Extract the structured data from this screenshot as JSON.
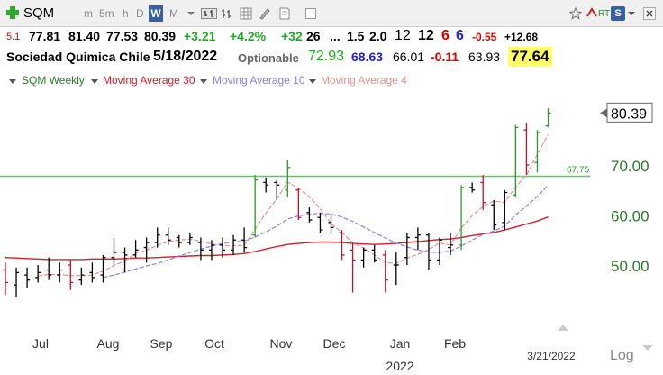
{
  "toolbar": {
    "symbol": "SQM",
    "periods": [
      "m",
      "5m",
      "h",
      "D",
      "W",
      "M"
    ],
    "active_period": "W",
    "rt_label": "RT",
    "s_label": "S"
  },
  "quote": {
    "row1": {
      "prefix": "5.1",
      "last": "77.81",
      "high": "81.40",
      "low": "77.53",
      "close": "80.39",
      "change": "+3.21",
      "change_pct": "+4.2%",
      "v1": "+32",
      "v2": "26",
      "dots": "...",
      "v3": "1.5",
      "v4": "2.0",
      "v5": "12",
      "v6": "12",
      "v7": "6",
      "v8": "6",
      "v9": "-0.55",
      "v10": "+12.68"
    },
    "row2": {
      "company": "Sociedad Quimica Chile",
      "date": "5/18/2022",
      "optionable": "Optionable",
      "a": "72.93",
      "b": "68.63",
      "c": "66.01",
      "d": "-0.11",
      "e": "63.93",
      "f": "77.64"
    }
  },
  "legend": {
    "title": "SQM Weekly",
    "ma30": "Moving Average 30",
    "ma10": "Moving Average 10",
    "ma4": "Moving Average 4"
  },
  "colors": {
    "up_bar": "#2a9a2a",
    "down_bar": "#c0132a",
    "neutral_bar": "#000000",
    "ma30": "#d0202a",
    "ma10": "#8a7ee0",
    "ma4": "#e89090",
    "hline": "#44dd44",
    "axis_text": "#2c7a2c",
    "highlight_bg": "#ffff66",
    "green_text": "#22aa22",
    "red_text": "#dd0000",
    "blue_text": "#2222cc"
  },
  "chart_data": {
    "type": "ohlc",
    "title": "SQM Weekly",
    "yticks": [
      50,
      60,
      70
    ],
    "ytick_labels": [
      "50.00",
      "60.00",
      "70.00"
    ],
    "ylim": [
      42,
      84
    ],
    "last_price_label": "80.39",
    "hline": {
      "value": 67.75,
      "label": "67.75"
    },
    "x_labels": [
      "Jul",
      "Aug",
      "Sep",
      "Oct",
      "Nov",
      "Dec",
      "Jan",
      "Feb"
    ],
    "year_label": "2022",
    "date_label": "3/21/2022",
    "log_label": "Log",
    "bars": [
      {
        "o": 49.0,
        "h": 50.5,
        "l": 44.0,
        "c": 46.5,
        "d": "down"
      },
      {
        "o": 46.0,
        "h": 49.5,
        "l": 43.5,
        "c": 48.5,
        "d": "neutral"
      },
      {
        "o": 48.0,
        "h": 49.5,
        "l": 45.5,
        "c": 47.0,
        "d": "neutral"
      },
      {
        "o": 47.5,
        "h": 50.0,
        "l": 46.5,
        "c": 48.5,
        "d": "neutral"
      },
      {
        "o": 49.0,
        "h": 51.5,
        "l": 47.0,
        "c": 48.0,
        "d": "neutral"
      },
      {
        "o": 48.0,
        "h": 50.5,
        "l": 46.5,
        "c": 49.0,
        "d": "neutral"
      },
      {
        "o": 50.0,
        "h": 51.0,
        "l": 45.0,
        "c": 46.5,
        "d": "down"
      },
      {
        "o": 47.0,
        "h": 49.5,
        "l": 46.0,
        "c": 48.0,
        "d": "neutral"
      },
      {
        "o": 48.5,
        "h": 50.5,
        "l": 46.5,
        "c": 47.5,
        "d": "neutral"
      },
      {
        "o": 48.0,
        "h": 52.0,
        "l": 46.5,
        "c": 51.5,
        "d": "neutral"
      },
      {
        "o": 51.5,
        "h": 55.5,
        "l": 50.0,
        "c": 52.5,
        "d": "neutral"
      },
      {
        "o": 52.5,
        "h": 53.5,
        "l": 48.5,
        "c": 52.0,
        "d": "neutral"
      },
      {
        "o": 52.0,
        "h": 55.0,
        "l": 51.5,
        "c": 53.0,
        "d": "neutral"
      },
      {
        "o": 53.5,
        "h": 55.5,
        "l": 50.5,
        "c": 54.5,
        "d": "neutral"
      },
      {
        "o": 54.5,
        "h": 57.5,
        "l": 53.5,
        "c": 56.0,
        "d": "neutral"
      },
      {
        "o": 56.0,
        "h": 57.5,
        "l": 54.0,
        "c": 55.0,
        "d": "neutral"
      },
      {
        "o": 55.5,
        "h": 56.0,
        "l": 53.5,
        "c": 54.5,
        "d": "neutral"
      },
      {
        "o": 54.5,
        "h": 56.5,
        "l": 54.0,
        "c": 55.5,
        "d": "neutral"
      },
      {
        "o": 54.5,
        "h": 55.5,
        "l": 51.0,
        "c": 53.0,
        "d": "neutral"
      },
      {
        "o": 53.0,
        "h": 55.0,
        "l": 51.0,
        "c": 54.0,
        "d": "neutral"
      },
      {
        "o": 54.0,
        "h": 55.5,
        "l": 51.5,
        "c": 53.0,
        "d": "neutral"
      },
      {
        "o": 53.0,
        "h": 56.0,
        "l": 52.0,
        "c": 55.0,
        "d": "neutral"
      },
      {
        "o": 55.0,
        "h": 57.5,
        "l": 52.5,
        "c": 53.5,
        "d": "neutral"
      },
      {
        "o": 56.0,
        "h": 68.0,
        "l": 55.5,
        "c": 67.0,
        "d": "up"
      },
      {
        "o": 66.5,
        "h": 67.5,
        "l": 64.5,
        "c": 66.0,
        "d": "neutral"
      },
      {
        "o": 66.5,
        "h": 67.0,
        "l": 63.0,
        "c": 66.0,
        "d": "neutral"
      },
      {
        "o": 65.0,
        "h": 71.0,
        "l": 63.5,
        "c": 69.5,
        "d": "up"
      },
      {
        "o": 65.0,
        "h": 65.5,
        "l": 59.0,
        "c": 59.5,
        "d": "down"
      },
      {
        "o": 60.5,
        "h": 61.5,
        "l": 58.5,
        "c": 59.0,
        "d": "neutral"
      },
      {
        "o": 59.5,
        "h": 60.5,
        "l": 56.5,
        "c": 57.0,
        "d": "neutral"
      },
      {
        "o": 58.5,
        "h": 60.0,
        "l": 56.5,
        "c": 57.5,
        "d": "neutral"
      },
      {
        "o": 56.5,
        "h": 57.0,
        "l": 51.0,
        "c": 52.0,
        "d": "down"
      },
      {
        "o": 53.0,
        "h": 54.5,
        "l": 44.5,
        "c": 51.0,
        "d": "down"
      },
      {
        "o": 51.0,
        "h": 53.5,
        "l": 49.5,
        "c": 53.0,
        "d": "neutral"
      },
      {
        "o": 53.0,
        "h": 54.0,
        "l": 50.5,
        "c": 51.0,
        "d": "neutral"
      },
      {
        "o": 52.0,
        "h": 53.0,
        "l": 44.5,
        "c": 47.0,
        "d": "down"
      },
      {
        "o": 50.0,
        "h": 52.5,
        "l": 46.0,
        "c": 50.0,
        "d": "neutral"
      },
      {
        "o": 51.5,
        "h": 56.5,
        "l": 50.0,
        "c": 55.5,
        "d": "neutral"
      },
      {
        "o": 55.5,
        "h": 57.5,
        "l": 53.0,
        "c": 56.0,
        "d": "neutral"
      },
      {
        "o": 56.0,
        "h": 56.5,
        "l": 49.0,
        "c": 51.0,
        "d": "neutral"
      },
      {
        "o": 51.0,
        "h": 55.5,
        "l": 50.0,
        "c": 55.0,
        "d": "neutral"
      },
      {
        "o": 53.5,
        "h": 56.5,
        "l": 52.0,
        "c": 54.0,
        "d": "neutral"
      },
      {
        "o": 54.0,
        "h": 66.0,
        "l": 53.0,
        "c": 65.5,
        "d": "up"
      },
      {
        "o": 65.5,
        "h": 66.5,
        "l": 64.5,
        "c": 65.0,
        "d": "neutral"
      },
      {
        "o": 66.5,
        "h": 68.0,
        "l": 61.0,
        "c": 62.5,
        "d": "down"
      },
      {
        "o": 62.0,
        "h": 63.0,
        "l": 57.0,
        "c": 58.0,
        "d": "neutral"
      },
      {
        "o": 58.5,
        "h": 65.0,
        "l": 57.0,
        "c": 64.5,
        "d": "neutral"
      },
      {
        "o": 64.0,
        "h": 78.0,
        "l": 63.5,
        "c": 77.5,
        "d": "up"
      },
      {
        "o": 77.0,
        "h": 78.5,
        "l": 68.0,
        "c": 70.0,
        "d": "down"
      },
      {
        "o": 70.5,
        "h": 77.0,
        "l": 68.5,
        "c": 76.5,
        "d": "up"
      },
      {
        "o": 77.81,
        "h": 81.4,
        "l": 77.53,
        "c": 80.39,
        "d": "up"
      }
    ],
    "ma30": [
      51.5,
      51.4,
      51.3,
      51.2,
      51.1,
      51.1,
      51.1,
      51.1,
      51.2,
      51.2,
      51.2,
      51.3,
      51.4,
      51.4,
      51.5,
      51.6,
      51.7,
      51.8,
      51.9,
      51.9,
      52.0,
      52.1,
      52.3,
      52.7,
      53.2,
      53.7,
      54.1,
      54.3,
      54.5,
      54.6,
      54.6,
      54.5,
      54.3,
      54.2,
      54.1,
      54.2,
      54.3,
      54.5,
      54.7,
      54.9,
      55.1,
      55.2,
      55.5,
      55.9,
      56.2,
      56.5,
      57.0,
      57.6,
      58.2,
      58.8,
      59.6
    ],
    "ma10": [
      null,
      null,
      null,
      null,
      null,
      null,
      null,
      null,
      null,
      47.5,
      48.0,
      48.6,
      49.2,
      49.8,
      50.3,
      51.0,
      51.8,
      52.5,
      53.2,
      53.8,
      54.3,
      54.6,
      54.8,
      55.6,
      56.6,
      57.8,
      59.2,
      59.8,
      60.2,
      60.3,
      60.2,
      59.6,
      58.7,
      57.6,
      56.5,
      55.4,
      54.4,
      53.6,
      53.0,
      52.6,
      52.5,
      52.8,
      53.8,
      55.0,
      56.1,
      56.8,
      57.8,
      60.0,
      61.8,
      63.7,
      66.0
    ],
    "ma4": [
      null,
      null,
      null,
      47.8,
      48.1,
      48.1,
      47.9,
      47.9,
      48.0,
      48.8,
      49.9,
      50.8,
      52.3,
      53.0,
      53.9,
      54.7,
      55.0,
      55.2,
      54.7,
      54.2,
      53.9,
      53.9,
      53.9,
      57.2,
      60.4,
      63.2,
      66.6,
      65.3,
      63.7,
      61.2,
      58.3,
      56.5,
      54.4,
      53.4,
      52.0,
      50.5,
      50.3,
      51.4,
      52.1,
      53.1,
      54.4,
      54.0,
      57.4,
      59.9,
      61.7,
      62.8,
      62.5,
      65.6,
      68.0,
      72.1,
      76.1
    ]
  }
}
